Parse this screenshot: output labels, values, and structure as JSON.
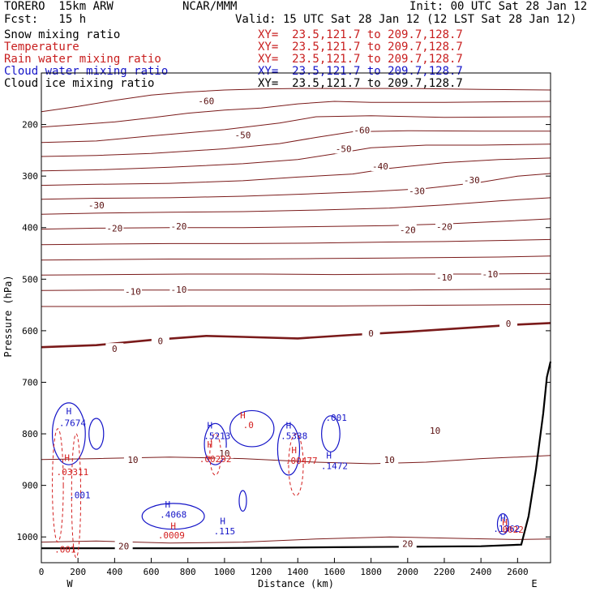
{
  "header": {
    "model": "TORERO  15km ARW",
    "center": "NCAR/MMM",
    "init": "Init: 00 UTC Sat 28 Jan 12",
    "fcst": "Fcst:   15 h",
    "valid": "Valid: 15 UTC Sat 28 Jan 12 (12 LST Sat 28 Jan 12)"
  },
  "legend": [
    {
      "name": "Snow mixing ratio",
      "xy": "XY=  23.5,121.7 to 209.7,128.7",
      "color": "#000000"
    },
    {
      "name": "Temperature",
      "xy": "XY=  23.5,121.7 to 209.7,128.7",
      "color": "#c81e1e"
    },
    {
      "name": "Rain water mixing ratio",
      "xy": "XY=  23.5,121.7 to 209.7,128.7",
      "color": "#c81e1e"
    },
    {
      "name": "Cloud water mixing ratio",
      "xy": "XY=  23.5,121.7 to 209.7,128.7",
      "color": "#1414c8"
    },
    {
      "name": "Cloud ice mixing ratio",
      "xy": "XY=  23.5,121.7 to 209.7,128.7",
      "color": "#000000"
    }
  ],
  "chart_data": {
    "type": "contour-cross-section",
    "xlabel": "Distance (km)",
    "ylabel": "Pressure (hPa)",
    "xlim": [
      0,
      2780
    ],
    "ylim": [
      100,
      1050
    ],
    "x_ticks": [
      0,
      200,
      400,
      600,
      800,
      1000,
      1200,
      1400,
      1600,
      1800,
      2000,
      2200,
      2400,
      2600
    ],
    "y_ticks": [
      200,
      300,
      400,
      500,
      600,
      700,
      800,
      900,
      1000
    ],
    "x_endpoints": {
      "left": "W",
      "right": "E"
    },
    "colors": {
      "temperature": "#7a1a1a",
      "cloud_water": "#1414c8",
      "rain": "#d42020",
      "terrain": "#000000"
    },
    "temperature_contours": [
      {
        "level": -60,
        "label": "-60",
        "points": [
          [
            0,
            175
          ],
          [
            200,
            165
          ],
          [
            400,
            153
          ],
          [
            600,
            143
          ],
          [
            800,
            137
          ],
          [
            1000,
            133
          ],
          [
            1200,
            131
          ],
          [
            1400,
            130
          ],
          [
            1600,
            130
          ],
          [
            2000,
            130
          ],
          [
            2400,
            132
          ],
          [
            2780,
            133
          ]
        ]
      },
      {
        "level": -60,
        "label": "-60",
        "points": [
          [
            0,
            205
          ],
          [
            200,
            200
          ],
          [
            400,
            195
          ],
          [
            600,
            187
          ],
          [
            800,
            178
          ],
          [
            1000,
            172
          ],
          [
            1200,
            168
          ],
          [
            1400,
            160
          ],
          [
            1600,
            155
          ],
          [
            1800,
            157
          ],
          [
            2200,
            157
          ],
          [
            2780,
            155
          ]
        ]
      },
      {
        "level": -50,
        "label": "-50",
        "points": [
          [
            0,
            235
          ],
          [
            300,
            232
          ],
          [
            600,
            222
          ],
          [
            1000,
            210
          ],
          [
            1300,
            197
          ],
          [
            1500,
            185
          ],
          [
            1800,
            183
          ],
          [
            2200,
            186
          ],
          [
            2780,
            185
          ]
        ]
      },
      {
        "level": -50,
        "label": "-50",
        "points": [
          [
            0,
            262
          ],
          [
            300,
            260
          ],
          [
            600,
            256
          ],
          [
            1000,
            247
          ],
          [
            1300,
            237
          ],
          [
            1500,
            225
          ],
          [
            1700,
            214
          ],
          [
            2000,
            212
          ],
          [
            2400,
            213
          ],
          [
            2780,
            213
          ]
        ]
      },
      {
        "level": -40,
        "label": "-40",
        "points": [
          [
            0,
            290
          ],
          [
            300,
            288
          ],
          [
            700,
            283
          ],
          [
            1100,
            276
          ],
          [
            1400,
            268
          ],
          [
            1600,
            257
          ],
          [
            1800,
            245
          ],
          [
            2100,
            240
          ],
          [
            2400,
            240
          ],
          [
            2780,
            238
          ]
        ]
      },
      {
        "level": -30,
        "label": "-30",
        "points": [
          [
            0,
            318
          ],
          [
            300,
            316
          ],
          [
            700,
            314
          ],
          [
            1100,
            309
          ],
          [
            1400,
            302
          ],
          [
            1700,
            296
          ],
          [
            1900,
            285
          ],
          [
            2200,
            274
          ],
          [
            2500,
            268
          ],
          [
            2780,
            265
          ]
        ]
      },
      {
        "level": -30,
        "label": "-30",
        "points": [
          [
            0,
            345
          ],
          [
            300,
            343
          ],
          [
            700,
            342
          ],
          [
            1100,
            339
          ],
          [
            1500,
            334
          ],
          [
            1800,
            330
          ],
          [
            2100,
            324
          ],
          [
            2400,
            312
          ],
          [
            2600,
            300
          ],
          [
            2780,
            295
          ]
        ]
      },
      {
        "level": -20,
        "label": "-20",
        "points": [
          [
            0,
            374
          ],
          [
            300,
            372
          ],
          [
            700,
            370
          ],
          [
            1100,
            369
          ],
          [
            1500,
            366
          ],
          [
            1900,
            362
          ],
          [
            2200,
            356
          ],
          [
            2500,
            348
          ],
          [
            2780,
            342
          ]
        ]
      },
      {
        "level": -20,
        "label": "-20",
        "points": [
          [
            0,
            403
          ],
          [
            300,
            401
          ],
          [
            700,
            400
          ],
          [
            1100,
            400
          ],
          [
            1500,
            398
          ],
          [
            1900,
            396
          ],
          [
            2200,
            393
          ],
          [
            2500,
            388
          ],
          [
            2780,
            383
          ]
        ]
      },
      {
        "level": -10,
        "label": "-10",
        "points": [
          [
            0,
            433
          ],
          [
            300,
            432
          ],
          [
            700,
            431
          ],
          [
            1100,
            431
          ],
          [
            1500,
            430
          ],
          [
            1900,
            428
          ],
          [
            2200,
            427
          ],
          [
            2500,
            425
          ],
          [
            2780,
            423
          ]
        ]
      },
      {
        "level": -10,
        "label": "-10",
        "points": [
          [
            0,
            463
          ],
          [
            300,
            462
          ],
          [
            700,
            461
          ],
          [
            1100,
            461
          ],
          [
            1500,
            460
          ],
          [
            1900,
            459
          ],
          [
            2200,
            458
          ],
          [
            2500,
            457
          ],
          [
            2780,
            455
          ]
        ]
      },
      {
        "level": -10,
        "label": "-10",
        "points": [
          [
            0,
            492
          ],
          [
            400,
            491
          ],
          [
            800,
            490
          ],
          [
            1200,
            490
          ],
          [
            1600,
            491
          ],
          [
            2000,
            490
          ],
          [
            2400,
            490
          ],
          [
            2780,
            489
          ]
        ]
      },
      {
        "level": -10,
        "label": "-10",
        "points": [
          [
            0,
            522
          ],
          [
            400,
            521
          ],
          [
            800,
            521
          ],
          [
            1200,
            521
          ],
          [
            1600,
            521
          ],
          [
            2000,
            521
          ],
          [
            2400,
            520
          ],
          [
            2780,
            519
          ]
        ]
      },
      {
        "level": -10,
        "label": "-10",
        "points": [
          [
            0,
            553
          ],
          [
            400,
            553
          ],
          [
            800,
            552
          ],
          [
            1200,
            552
          ],
          [
            1600,
            552
          ],
          [
            2000,
            551
          ],
          [
            2400,
            550
          ],
          [
            2780,
            549
          ]
        ]
      },
      {
        "level": 0,
        "label": "0",
        "points": [
          [
            0,
            632
          ],
          [
            300,
            628
          ],
          [
            600,
            618
          ],
          [
            900,
            610
          ],
          [
            1100,
            612
          ],
          [
            1400,
            615
          ],
          [
            1700,
            608
          ],
          [
            2000,
            602
          ],
          [
            2300,
            595
          ],
          [
            2600,
            588
          ],
          [
            2780,
            585
          ]
        ]
      },
      {
        "level": 10,
        "label": "10",
        "points": [
          [
            0,
            850
          ],
          [
            300,
            848
          ],
          [
            700,
            845
          ],
          [
            1100,
            848
          ],
          [
            1500,
            855
          ],
          [
            1800,
            858
          ],
          [
            2100,
            855
          ],
          [
            2400,
            848
          ],
          [
            2600,
            845
          ],
          [
            2780,
            842
          ]
        ]
      },
      {
        "level": 20,
        "label": "20",
        "points": [
          [
            0,
            1010
          ],
          [
            300,
            1008
          ],
          [
            700,
            1012
          ],
          [
            1100,
            1010
          ],
          [
            1500,
            1004
          ],
          [
            1900,
            1000
          ],
          [
            2300,
            1003
          ],
          [
            2600,
            1005
          ],
          [
            2780,
            1004
          ]
        ]
      }
    ],
    "thick_zero_contour": [
      [
        0,
        632
      ],
      [
        300,
        628
      ],
      [
        600,
        618
      ],
      [
        900,
        610
      ],
      [
        1100,
        612
      ],
      [
        1400,
        615
      ],
      [
        1700,
        608
      ],
      [
        2000,
        602
      ],
      [
        2300,
        595
      ],
      [
        2600,
        588
      ],
      [
        2780,
        585
      ]
    ],
    "thick_zero_label_x": [
      400,
      1050,
      2450
    ],
    "temp_labels": [
      {
        "text": "-60",
        "x": 900,
        "y": 154
      },
      {
        "text": "-60",
        "x": 1750,
        "y": 211
      },
      {
        "text": "-50",
        "x": 1100,
        "y": 220
      },
      {
        "text": "-50",
        "x": 1650,
        "y": 247
      },
      {
        "text": "-40",
        "x": 1850,
        "y": 281
      },
      {
        "text": "-30",
        "x": 300,
        "y": 356
      },
      {
        "text": "-30",
        "x": 2050,
        "y": 329
      },
      {
        "text": "-30",
        "x": 2350,
        "y": 308
      },
      {
        "text": "-20",
        "x": 400,
        "y": 401
      },
      {
        "text": "-20",
        "x": 750,
        "y": 397
      },
      {
        "text": "-20",
        "x": 2000,
        "y": 404
      },
      {
        "text": "-20",
        "x": 2200,
        "y": 398
      },
      {
        "text": "-10",
        "x": 500,
        "y": 524
      },
      {
        "text": "-10",
        "x": 750,
        "y": 520
      },
      {
        "text": "-10",
        "x": 2200,
        "y": 496
      },
      {
        "text": "-10",
        "x": 2450,
        "y": 490
      },
      {
        "text": "0",
        "x": 1800,
        "y": 605
      },
      {
        "text": "0",
        "x": 2550,
        "y": 586
      },
      {
        "text": "0",
        "x": 400,
        "y": 635
      },
      {
        "text": "0",
        "x": 650,
        "y": 620
      },
      {
        "text": "10",
        "x": 500,
        "y": 850
      },
      {
        "text": "10",
        "x": 1000,
        "y": 838
      },
      {
        "text": "10",
        "x": 1900,
        "y": 850
      },
      {
        "text": "10",
        "x": 2150,
        "y": 794
      },
      {
        "text": "20",
        "x": 450,
        "y": 1018
      },
      {
        "text": "20",
        "x": 2000,
        "y": 1013
      }
    ],
    "terrain": [
      [
        0,
        1022
      ],
      [
        400,
        1022
      ],
      [
        800,
        1022
      ],
      [
        1200,
        1021
      ],
      [
        1600,
        1020
      ],
      [
        2000,
        1019
      ],
      [
        2400,
        1018
      ],
      [
        2620,
        1015
      ],
      [
        2660,
        960
      ],
      [
        2700,
        870
      ],
      [
        2740,
        760
      ],
      [
        2760,
        690
      ],
      [
        2780,
        660
      ]
    ],
    "cloud_water_labels": [
      {
        "text": "H",
        "x": 150,
        "y": 762
      },
      {
        "text": ".7674",
        "x": 170,
        "y": 785
      },
      {
        "text": "H",
        "x": 920,
        "y": 790
      },
      {
        "text": ".5213",
        "x": 960,
        "y": 810
      },
      {
        "text": "H",
        "x": 1350,
        "y": 790
      },
      {
        "text": ".5338",
        "x": 1380,
        "y": 810
      },
      {
        "text": ".001",
        "x": 1610,
        "y": 775
      },
      {
        "text": "H",
        "x": 1570,
        "y": 848
      },
      {
        "text": ".1472",
        "x": 1600,
        "y": 868
      },
      {
        "text": ".001",
        "x": 210,
        "y": 925
      },
      {
        "text": "H",
        "x": 690,
        "y": 943
      },
      {
        "text": ".4068",
        "x": 720,
        "y": 963
      },
      {
        "text": "H",
        "x": 990,
        "y": 975
      },
      {
        "text": ".115",
        "x": 1000,
        "y": 995
      },
      {
        "text": "H",
        "x": 2520,
        "y": 970
      },
      {
        "text": ".1362",
        "x": 2540,
        "y": 990
      }
    ],
    "rain_labels": [
      {
        "text": "H",
        "x": 140,
        "y": 853
      },
      {
        "text": ".03311",
        "x": 170,
        "y": 880
      },
      {
        "text": "H",
        "x": 920,
        "y": 827
      },
      {
        "text": ".00292",
        "x": 950,
        "y": 855
      },
      {
        "text": "H",
        "x": 1380,
        "y": 838
      },
      {
        "text": ".00477",
        "x": 1420,
        "y": 858
      },
      {
        "text": "H",
        "x": 1100,
        "y": 770
      },
      {
        "text": ".0",
        "x": 1130,
        "y": 789
      },
      {
        "text": "H",
        "x": 720,
        "y": 985
      },
      {
        "text": ".0009",
        "x": 710,
        "y": 1003
      },
      {
        "text": ".001",
        "x": 130,
        "y": 1030
      },
      {
        "text": "H",
        "x": 2530,
        "y": 978
      },
      {
        "text": ".0022",
        "x": 2560,
        "y": 992
      }
    ]
  }
}
